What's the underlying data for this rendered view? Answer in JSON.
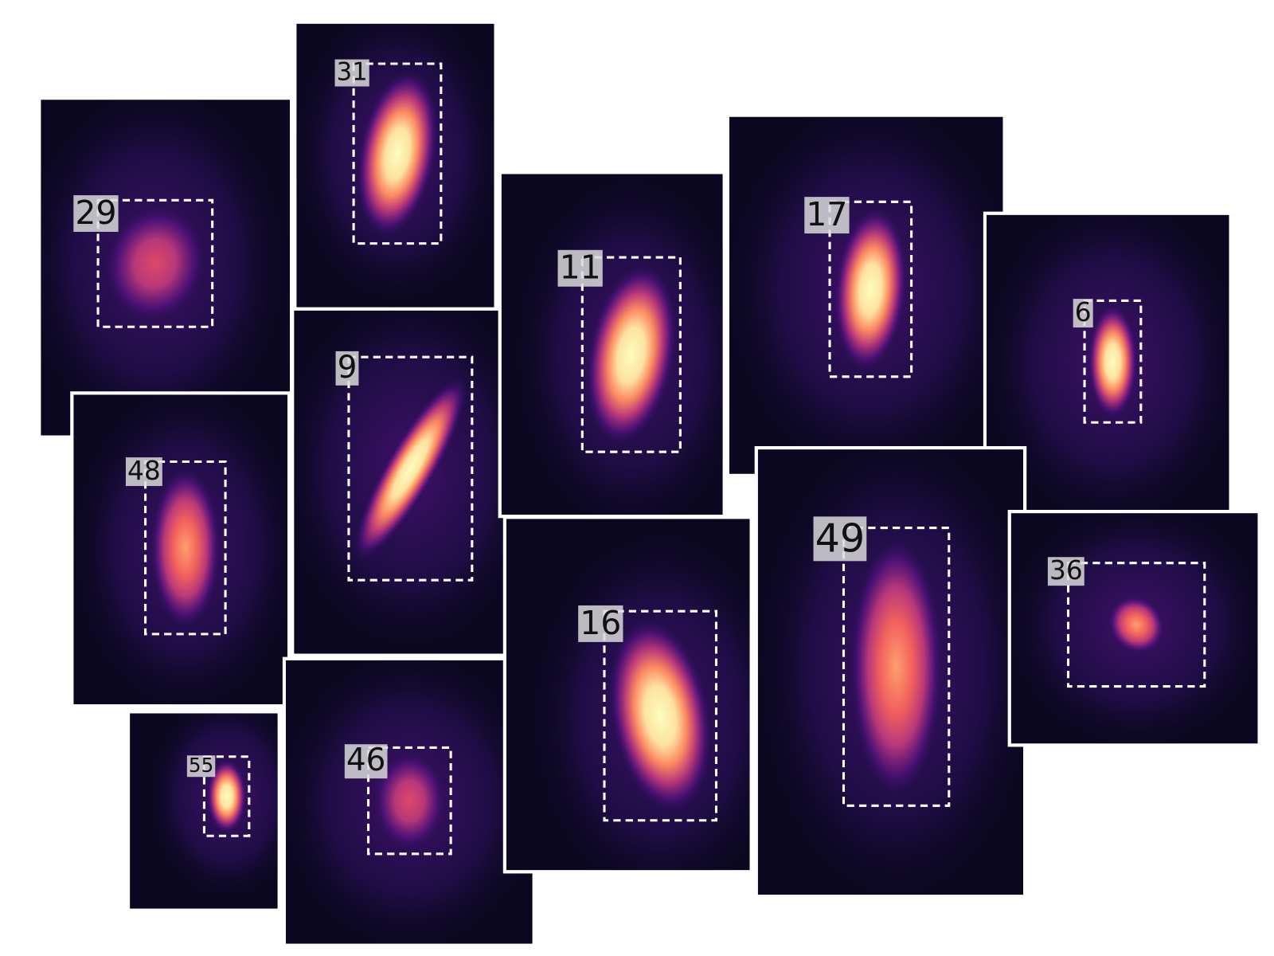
{
  "panels": [
    {
      "label": "29"
    },
    {
      "label": "31"
    },
    {
      "label": "9"
    },
    {
      "label": "48"
    },
    {
      "label": "55"
    },
    {
      "label": "46"
    },
    {
      "label": "11"
    },
    {
      "label": "17"
    },
    {
      "label": "16"
    },
    {
      "label": "6"
    },
    {
      "label": "49"
    },
    {
      "label": "36"
    }
  ]
}
